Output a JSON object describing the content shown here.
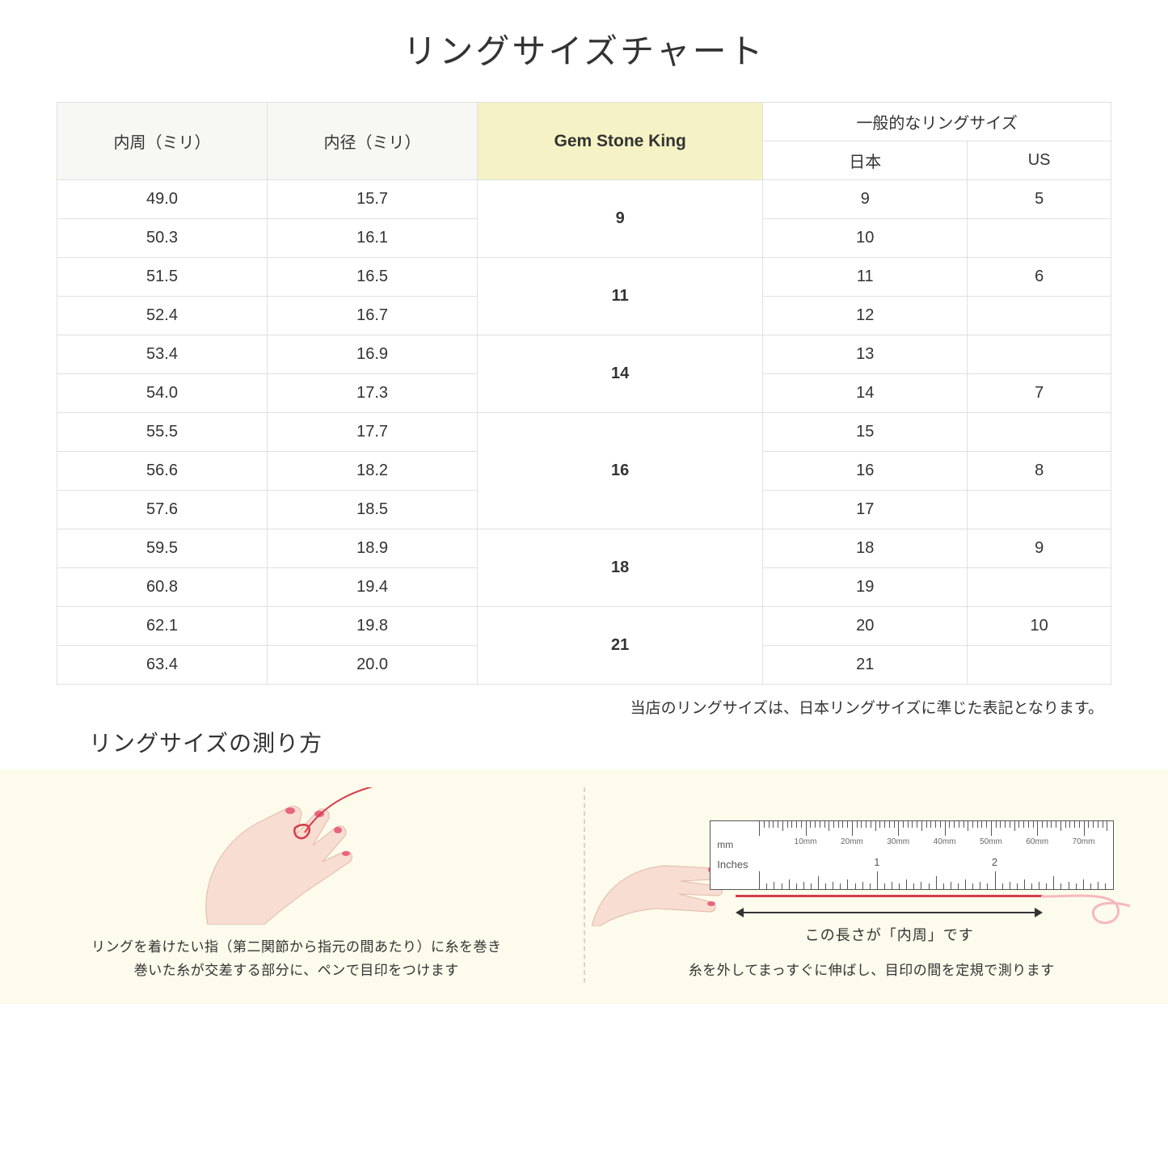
{
  "title": "リングサイズチャート",
  "headers": {
    "circumference": "内周（ミリ）",
    "diameter": "内径（ミリ）",
    "gem": "Gem Stone King",
    "general": "一般的なリングサイズ",
    "japan": "日本",
    "us": "US"
  },
  "groups": [
    {
      "gem": "9",
      "rows": [
        {
          "c": "49.0",
          "d": "15.7",
          "jp": "9",
          "us": "5"
        },
        {
          "c": "50.3",
          "d": "16.1",
          "jp": "10",
          "us": ""
        }
      ]
    },
    {
      "gem": "11",
      "rows": [
        {
          "c": "51.5",
          "d": "16.5",
          "jp": "11",
          "us": "6"
        },
        {
          "c": "52.4",
          "d": "16.7",
          "jp": "12",
          "us": ""
        }
      ]
    },
    {
      "gem": "14",
      "rows": [
        {
          "c": "53.4",
          "d": "16.9",
          "jp": "13",
          "us": ""
        },
        {
          "c": "54.0",
          "d": "17.3",
          "jp": "14",
          "us": "7"
        }
      ]
    },
    {
      "gem": "16",
      "rows": [
        {
          "c": "55.5",
          "d": "17.7",
          "jp": "15",
          "us": ""
        },
        {
          "c": "56.6",
          "d": "18.2",
          "jp": "16",
          "us": "8"
        },
        {
          "c": "57.6",
          "d": "18.5",
          "jp": "17",
          "us": ""
        }
      ]
    },
    {
      "gem": "18",
      "rows": [
        {
          "c": "59.5",
          "d": "18.9",
          "jp": "18",
          "us": "9"
        },
        {
          "c": "60.8",
          "d": "19.4",
          "jp": "19",
          "us": ""
        }
      ]
    },
    {
      "gem": "21",
      "rows": [
        {
          "c": "62.1",
          "d": "19.8",
          "jp": "20",
          "us": "10"
        },
        {
          "c": "63.4",
          "d": "20.0",
          "jp": "21",
          "us": ""
        }
      ]
    }
  ],
  "note": "当店のリングサイズは、日本リングサイズに準じた表記となります。",
  "howto": {
    "title": "リングサイズの測り方",
    "left_caption": "リングを着けたい指（第二関節から指元の間あたり）に糸を巻き\n巻いた糸が交差する部分に、ペンで目印をつけます",
    "right_caption": "糸を外してまっすぐに伸ばし、目印の間を定規で測ります",
    "ruler": {
      "mm_label": "mm",
      "inches_label": "Inches",
      "mm_marks": [
        "10mm",
        "20mm",
        "30mm",
        "40mm",
        "50mm",
        "60mm",
        "70mm"
      ],
      "inch_marks": [
        "1",
        "2"
      ]
    },
    "dim_text": "この長さが「内周」です"
  },
  "colors": {
    "header_plain": "#f7f7f3",
    "header_gem": "#f5f3c5",
    "border": "#e0e0e0",
    "howto_bg": "#fdfbeb",
    "thread": "#d63c4a",
    "skin": "#f8ddd2",
    "nail": "#e8657f"
  }
}
